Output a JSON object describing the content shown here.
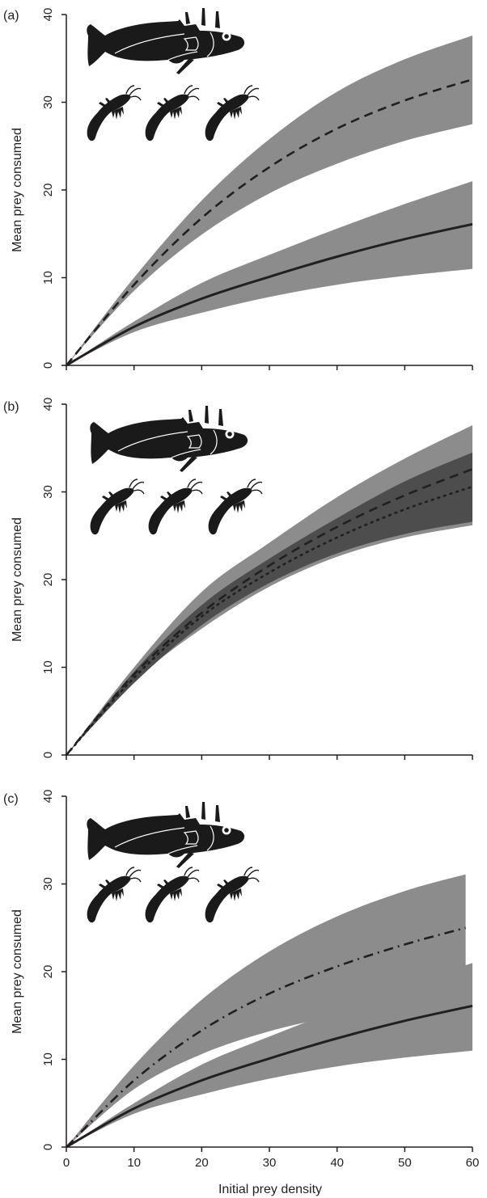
{
  "figure": {
    "ylabel": "Mean prey consumed",
    "xlabel": "Initial prey density",
    "x_ticks": [
      "0",
      "10",
      "20",
      "30",
      "40",
      "50",
      "60"
    ],
    "y_ticks": [
      "0",
      "10",
      "20",
      "30",
      "40"
    ]
  },
  "colors": {
    "band_light": "#8c8c8c",
    "band_dark": "#4d4d4d",
    "line": "#231f20",
    "icon": "#1a1a1a"
  },
  "chart_data": [
    {
      "panel_label": "(a)",
      "type": "line",
      "xlim": [
        0,
        60
      ],
      "ylim": [
        0,
        40
      ],
      "xlabel": "",
      "ylabel": "Mean prey consumed",
      "icon": "stickleback-with-three-amphipods-icon",
      "series": [
        {
          "style": "dashed",
          "band": "light",
          "x": [
            0,
            10,
            20,
            30,
            40,
            50,
            60
          ],
          "y": [
            0,
            9.2,
            16.8,
            22.6,
            27.0,
            30.2,
            32.6
          ],
          "lower": [
            0,
            8.5,
            14.9,
            19.6,
            23.0,
            25.6,
            27.5
          ],
          "upper": [
            0,
            10.0,
            18.8,
            25.8,
            31.2,
            34.9,
            37.6
          ]
        },
        {
          "style": "solid",
          "band": "light",
          "x": [
            0,
            10,
            20,
            30,
            40,
            50,
            60
          ],
          "y": [
            0,
            4.4,
            7.6,
            10.1,
            12.4,
            14.4,
            16.1
          ],
          "lower": [
            0,
            3.8,
            6.0,
            7.8,
            9.2,
            10.2,
            11.0
          ],
          "upper": [
            0,
            5.0,
            9.4,
            12.6,
            15.6,
            18.4,
            21.0
          ]
        }
      ]
    },
    {
      "panel_label": "(b)",
      "type": "line",
      "xlim": [
        0,
        60
      ],
      "ylim": [
        0,
        40
      ],
      "xlabel": "",
      "ylabel": "Mean prey consumed",
      "icon": "stickleback-with-three-amphipods-icon",
      "series": [
        {
          "style": "dashed",
          "band": "light",
          "x": [
            0,
            10,
            20,
            30,
            40,
            50,
            60
          ],
          "y": [
            0,
            9.2,
            16.2,
            21.6,
            26.0,
            29.6,
            32.6
          ],
          "lower": [
            0,
            8.4,
            14.4,
            19.2,
            22.6,
            24.8,
            26.2
          ],
          "upper": [
            0,
            10.0,
            18.6,
            24.2,
            29.4,
            33.8,
            37.6
          ]
        },
        {
          "style": "dotted",
          "band": "dark",
          "x": [
            0,
            10,
            20,
            30,
            40,
            50,
            60
          ],
          "y": [
            0,
            8.8,
            15.8,
            20.8,
            24.8,
            28.0,
            30.6
          ],
          "lower": [
            0,
            8.2,
            14.8,
            19.6,
            23.0,
            25.2,
            26.6
          ],
          "upper": [
            0,
            9.5,
            17.1,
            22.4,
            27.0,
            31.2,
            34.5
          ]
        }
      ]
    },
    {
      "panel_label": "(c)",
      "type": "line",
      "xlim": [
        0,
        60
      ],
      "ylim": [
        0,
        40
      ],
      "xlabel": "Initial prey density",
      "ylabel": "Mean prey consumed",
      "icon": "stickleback-with-three-amphipods-icon",
      "series": [
        {
          "style": "dashdot",
          "band": "light",
          "x": [
            0,
            10,
            20,
            30,
            40,
            50,
            59
          ],
          "y": [
            0,
            7.6,
            13.3,
            17.5,
            20.6,
            23.1,
            25.0
          ],
          "lower": [
            0,
            6.6,
            10.6,
            13.2,
            15.0,
            16.6,
            18.5
          ],
          "upper": [
            0,
            9.3,
            16.8,
            22.3,
            26.3,
            29.2,
            31.1
          ]
        },
        {
          "style": "solid",
          "band": "light",
          "x": [
            0,
            10,
            20,
            30,
            40,
            50,
            60
          ],
          "y": [
            0,
            4.4,
            7.6,
            10.1,
            12.4,
            14.4,
            16.1
          ],
          "lower": [
            0,
            3.8,
            6.0,
            7.8,
            9.2,
            10.2,
            11.0
          ],
          "upper": [
            0,
            5.0,
            9.4,
            12.6,
            15.6,
            18.4,
            21.0
          ]
        }
      ]
    }
  ]
}
